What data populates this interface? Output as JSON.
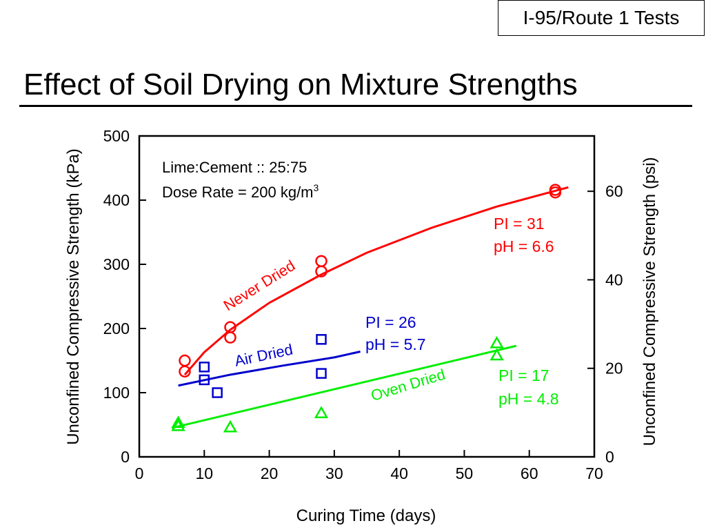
{
  "header": {
    "tag": "I-95/Route 1 Tests",
    "title": "Effect of Soil Drying on Mixture Strengths"
  },
  "chart_data": {
    "type": "scatter",
    "xlabel": "Curing Time (days)",
    "ylabel": "Unconfined Compressive Strength (kPa)",
    "y2label": "Unconfined Compressive Strength (psi)",
    "xlim": [
      0,
      70
    ],
    "ylim": [
      0,
      500
    ],
    "y2lim": [
      0,
      72.5
    ],
    "xticks": [
      0,
      10,
      20,
      30,
      40,
      50,
      60,
      70
    ],
    "yticks": [
      0,
      100,
      200,
      300,
      400,
      500
    ],
    "y2ticks": [
      0,
      20,
      40,
      60
    ],
    "grid": false,
    "annotation": {
      "line1": "Lime:Cement :: 25:75",
      "line2_prefix": "Dose Rate = 200 kg/m",
      "line2_sup": "3"
    },
    "series": [
      {
        "name": "Never Dried",
        "color": "#ff0000",
        "marker": "circle",
        "points": [
          [
            7,
            150
          ],
          [
            7,
            133
          ],
          [
            14,
            202
          ],
          [
            14,
            186
          ],
          [
            28,
            305
          ],
          [
            28,
            289
          ],
          [
            64,
            416
          ],
          [
            64,
            412
          ]
        ],
        "fit": [
          [
            7,
            128
          ],
          [
            10,
            163
          ],
          [
            14,
            198
          ],
          [
            20,
            240
          ],
          [
            28,
            284
          ],
          [
            35,
            318
          ],
          [
            45,
            357
          ],
          [
            55,
            390
          ],
          [
            66,
            420
          ]
        ],
        "pi_label": "PI = 31",
        "ph_label": "pH = 6.6"
      },
      {
        "name": "Air Dried",
        "color": "#0000cc",
        "marker": "square",
        "points": [
          [
            10,
            140
          ],
          [
            10,
            120
          ],
          [
            12,
            100
          ],
          [
            28,
            183
          ],
          [
            28,
            130
          ]
        ],
        "fit": [
          [
            6,
            111
          ],
          [
            14,
            128
          ],
          [
            22,
            142
          ],
          [
            30,
            155
          ],
          [
            34,
            164
          ]
        ],
        "pi_label": "PI = 26",
        "ph_label": "pH = 5.7"
      },
      {
        "name": "Oven Dried",
        "color": "#00ee00",
        "marker": "triangle",
        "points": [
          [
            6,
            53
          ],
          [
            6,
            48
          ],
          [
            14,
            46
          ],
          [
            28,
            68
          ],
          [
            55,
            177
          ],
          [
            55,
            158
          ]
        ],
        "fit": [
          [
            5,
            45
          ],
          [
            58,
            173
          ]
        ],
        "pi_label": "PI = 17",
        "ph_label": "pH = 4.8"
      }
    ]
  }
}
